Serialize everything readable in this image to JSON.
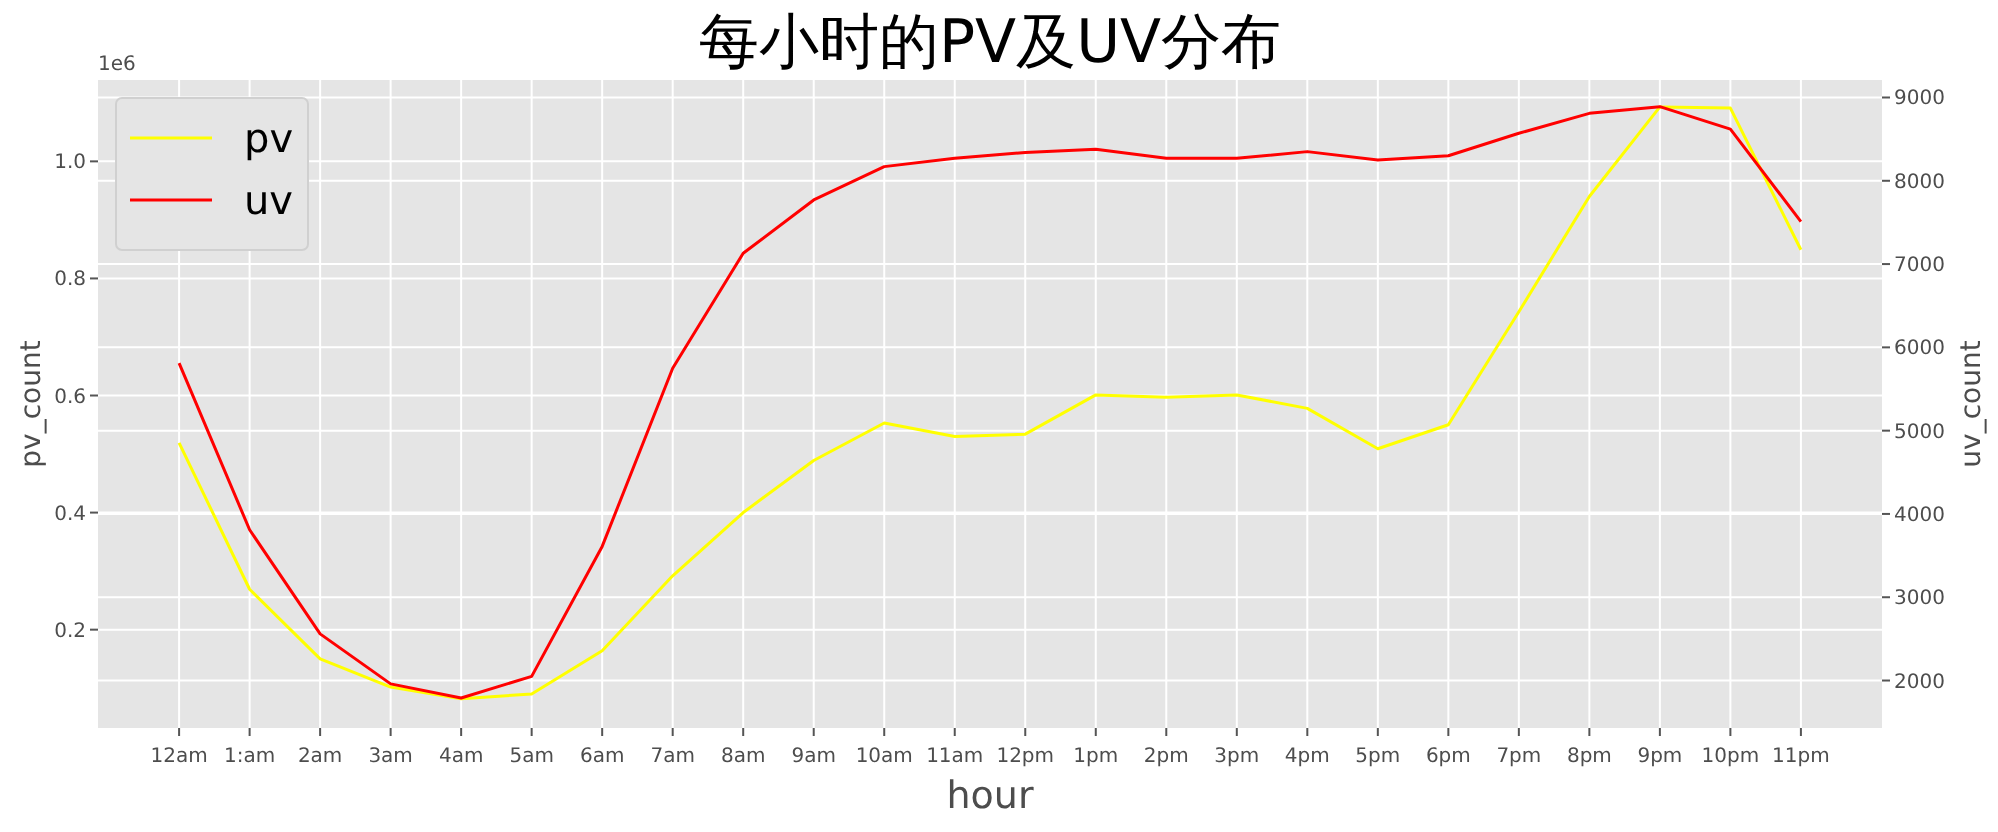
{
  "chart_data": {
    "type": "line",
    "title": "每小时的PV及UV分布",
    "xlabel": "hour",
    "ylabel": "pv_count",
    "y2label": "uv_count",
    "categories": [
      "12am",
      "1:am",
      "2am",
      "3am",
      "4am",
      "5am",
      "6am",
      "7am",
      "8am",
      "9am",
      "10am",
      "11am",
      "12pm",
      "1pm",
      "2pm",
      "3pm",
      "4pm",
      "5pm",
      "6pm",
      "7pm",
      "8pm",
      "9pm",
      "10pm",
      "11pm"
    ],
    "series": [
      {
        "name": "pv",
        "color": "#ffff00",
        "values": [
          0.519,
          0.269,
          0.15,
          0.102,
          0.082,
          0.09,
          0.164,
          0.292,
          0.4,
          0.489,
          0.553,
          0.53,
          0.534,
          0.601,
          0.597,
          0.601,
          0.578,
          0.509,
          0.55,
          0.743,
          0.94,
          1.093,
          1.091,
          0.849
        ]
      },
      {
        "name": "uv",
        "color": "#ff0000",
        "axis": "y2",
        "values": [
          5810,
          3810,
          2560,
          1960,
          1790,
          2050,
          3610,
          5750,
          7130,
          7770,
          8170,
          8270,
          8340,
          8380,
          8270,
          8270,
          8350,
          8250,
          8300,
          8570,
          8810,
          8890,
          8620,
          7510
        ]
      }
    ],
    "ylim": [
      0.032,
      1.139
    ],
    "yticks": [
      0.2,
      0.4,
      0.6,
      0.8,
      {
        "value": 1,
        "label": "1.0"
      }
    ],
    "y2lim": [
      1430,
      9210
    ],
    "y2ticks": [
      2000,
      3000,
      4000,
      5000,
      6000,
      7000,
      8000,
      9000
    ],
    "grid": true,
    "legend": "top left",
    "annotations": [
      "1e6"
    ]
  }
}
